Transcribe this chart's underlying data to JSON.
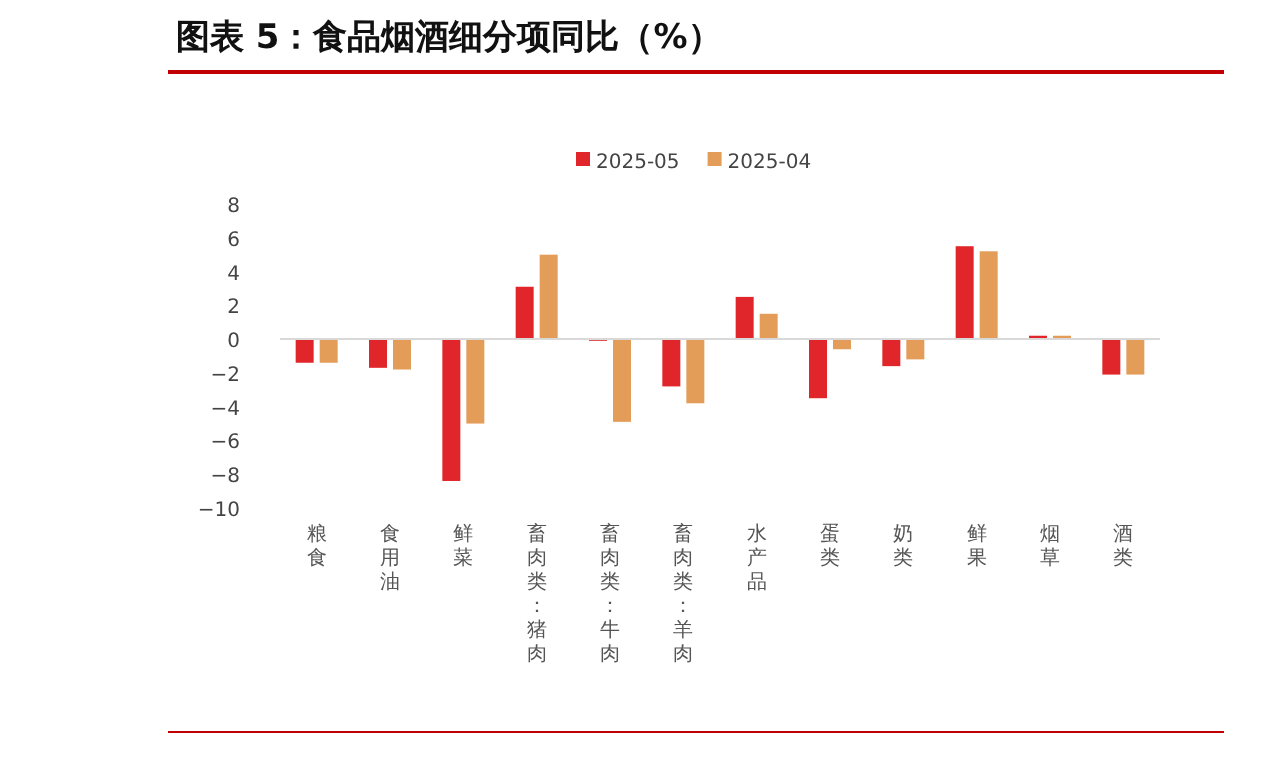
{
  "chart_data": {
    "type": "bar",
    "title": "图表 5：食品烟酒细分项同比（%）",
    "categories": [
      "粮食",
      "食用油",
      "鲜菜",
      "畜肉类：猪肉",
      "畜肉类：牛肉",
      "畜肉类：羊肉",
      "水产品",
      "蛋类",
      "奶类",
      "鲜果",
      "烟草",
      "酒类"
    ],
    "series": [
      {
        "name": "2025-05",
        "color": "#e0262a",
        "values": [
          -1.4,
          -1.7,
          -8.4,
          3.1,
          -0.1,
          -2.8,
          2.5,
          -3.5,
          -1.6,
          5.5,
          0.2,
          -2.1
        ]
      },
      {
        "name": "2025-04",
        "color": "#e39d59",
        "values": [
          -1.4,
          -1.8,
          -5.0,
          5.0,
          -4.9,
          -3.8,
          1.5,
          -0.6,
          -1.2,
          5.2,
          0.2,
          -2.1
        ]
      }
    ],
    "ylim": [
      -10,
      8
    ],
    "yticks": [
      -10,
      -8,
      -6,
      -4,
      -2,
      0,
      2,
      4,
      6,
      8
    ],
    "grid": false,
    "ref_lines": [
      {
        "axis": "y",
        "value": 0,
        "color": "#d9d9d9"
      }
    ],
    "legend": "top"
  }
}
